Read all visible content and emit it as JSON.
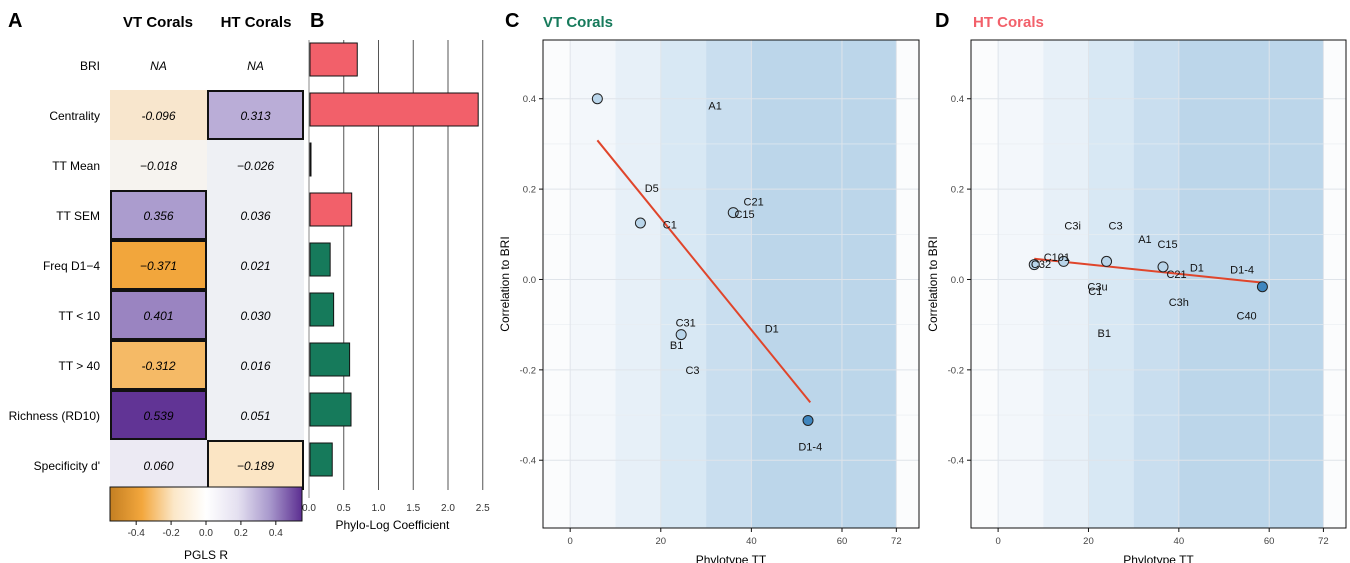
{
  "panel_letters": [
    "A",
    "B",
    "C",
    "D"
  ],
  "colors": {
    "vt": "#167a5b",
    "ht": "#f2606a",
    "fit_line": "#e0452b",
    "point_light": "#b9d5ea",
    "point_dark": "#3f86bf",
    "band_fills": [
      "#f3f7fb",
      "#e7f0f8",
      "#d8e8f4",
      "#c9deef",
      "#bcd6ea"
    ]
  },
  "chart_data": [
    {
      "type": "heatmap",
      "panel": "A",
      "columns": [
        "VT Corals",
        "HT Corals"
      ],
      "rows": [
        "BRI",
        "Centrality",
        "TT Mean",
        "TT SEM",
        "Freq D1−4",
        "TT < 10",
        "TT > 40",
        "Richness (RD10)",
        "Specificity d'"
      ],
      "values": [
        [
          "NA",
          "NA"
        ],
        [
          "-0.096",
          "0.313"
        ],
        [
          "−0.018",
          "−0.026"
        ],
        [
          "0.356",
          "0.036"
        ],
        [
          "−0.371",
          "0.021"
        ],
        [
          "0.401",
          "0.030"
        ],
        [
          "-0.312",
          "0.016"
        ],
        [
          "0.539",
          "0.051"
        ],
        [
          "0.060",
          "−0.189"
        ]
      ],
      "numeric_values": [
        [
          null,
          null
        ],
        [
          -0.096,
          0.313
        ],
        [
          -0.018,
          -0.026
        ],
        [
          0.356,
          0.036
        ],
        [
          -0.371,
          0.021
        ],
        [
          0.401,
          0.03
        ],
        [
          -0.312,
          0.016
        ],
        [
          0.539,
          0.051
        ],
        [
          0.06,
          -0.189
        ]
      ],
      "highlighted_cells": [
        [
          1,
          1
        ],
        [
          3,
          0
        ],
        [
          4,
          0
        ],
        [
          5,
          0
        ],
        [
          6,
          0
        ],
        [
          7,
          0
        ],
        [
          8,
          1
        ]
      ],
      "legend": {
        "title": "PGLS R",
        "range": [
          -0.55,
          0.55
        ],
        "ticks": [
          "-0.4",
          "-0.2",
          "0.0",
          "0.2",
          "0.4"
        ],
        "tick_values": [
          -0.4,
          -0.2,
          0.0,
          0.2,
          0.4
        ],
        "colors": [
          "#c47f22",
          "#f3a73d",
          "#fbe7c8",
          "#ffffff",
          "#e4e0f0",
          "#a898cc",
          "#5c2e91"
        ]
      }
    },
    {
      "type": "bar",
      "panel": "B",
      "orientation": "horizontal",
      "categories": [
        "BRI",
        "Centrality",
        "TT Mean",
        "TT SEM",
        "Freq D1−4",
        "TT < 10",
        "TT > 40",
        "Richness (RD10)",
        "Specificity d'"
      ],
      "values": [
        0.68,
        2.42,
        0.01,
        0.6,
        0.29,
        0.34,
        0.57,
        0.59,
        0.32
      ],
      "bar_group": [
        "HT",
        "HT",
        "HT",
        "HT",
        "VT",
        "VT",
        "VT",
        "VT",
        "VT"
      ],
      "xlabel": "Phylo-Log Coefficient",
      "xlim": [
        0,
        2.55
      ],
      "xticks": [
        0.0,
        0.5,
        1.0,
        1.5,
        2.0,
        2.5
      ],
      "xtick_labels": [
        "0.0",
        "0.5",
        "1.0",
        "1.5",
        "2.0",
        "2.5"
      ],
      "vertical_grid": [
        0.5,
        1.0,
        1.5,
        2.0,
        2.5
      ]
    },
    {
      "type": "scatter",
      "panel": "C",
      "title": "VT Corals",
      "xlabel": "Phylotype TT",
      "ylabel": "Correlation to BRI",
      "xlim": [
        -6,
        77
      ],
      "ylim": [
        -0.55,
        0.53
      ],
      "xticks": [
        0,
        20,
        40,
        60,
        72
      ],
      "yticks": [
        -0.4,
        -0.2,
        0.0,
        0.2,
        0.4
      ],
      "ytick_labels": [
        "-0.4",
        "-0.2",
        "0.0",
        "0.2",
        "0.4"
      ],
      "background_bands": [
        [
          0,
          10
        ],
        [
          10,
          20
        ],
        [
          20,
          30
        ],
        [
          30,
          40
        ],
        [
          40,
          72
        ]
      ],
      "points": [
        {
          "x": 6,
          "y": 0.4,
          "shade": "light"
        },
        {
          "x": 15.5,
          "y": 0.125,
          "shade": "light"
        },
        {
          "x": 36,
          "y": 0.148,
          "shade": "light"
        },
        {
          "x": 24.5,
          "y": -0.122,
          "shade": "light"
        },
        {
          "x": 52.5,
          "y": -0.312,
          "shade": "dark"
        }
      ],
      "labels": [
        {
          "text": "A1",
          "x": 32,
          "y": 0.385
        },
        {
          "text": "D5",
          "x": 18,
          "y": 0.202
        },
        {
          "text": "C21",
          "x": 40.5,
          "y": 0.173
        },
        {
          "text": "C15",
          "x": 38.5,
          "y": 0.145
        },
        {
          "text": "C1",
          "x": 22,
          "y": 0.122
        },
        {
          "text": "C31",
          "x": 25.5,
          "y": -0.095
        },
        {
          "text": "B1",
          "x": 23.5,
          "y": -0.145
        },
        {
          "text": "D1",
          "x": 44.5,
          "y": -0.108
        },
        {
          "text": "C3",
          "x": 27,
          "y": -0.2
        },
        {
          "text": "D1-4",
          "x": 53,
          "y": -0.37
        }
      ],
      "fit_line": {
        "x": [
          6,
          53
        ],
        "y": [
          0.308,
          -0.272
        ]
      }
    },
    {
      "type": "scatter",
      "panel": "D",
      "title": "HT Corals",
      "xlabel": "Phylotype TT",
      "ylabel": "Correlation to BRI",
      "xlim": [
        -6,
        77
      ],
      "ylim": [
        -0.55,
        0.53
      ],
      "xticks": [
        0,
        20,
        40,
        60,
        72
      ],
      "yticks": [
        -0.4,
        -0.2,
        0.0,
        0.2,
        0.4
      ],
      "ytick_labels": [
        "-0.4",
        "-0.2",
        "0.0",
        "0.2",
        "0.4"
      ],
      "background_bands": [
        [
          0,
          10
        ],
        [
          10,
          20
        ],
        [
          20,
          30
        ],
        [
          30,
          40
        ],
        [
          40,
          72
        ]
      ],
      "points": [
        {
          "x": 8,
          "y": 0.033,
          "shade": "light"
        },
        {
          "x": 14.5,
          "y": 0.04,
          "shade": "light"
        },
        {
          "x": 24,
          "y": 0.04,
          "shade": "light"
        },
        {
          "x": 36.5,
          "y": 0.028,
          "shade": "light"
        },
        {
          "x": 58.5,
          "y": -0.016,
          "shade": "dark"
        }
      ],
      "labels": [
        {
          "text": "C3i",
          "x": 16.5,
          "y": 0.12
        },
        {
          "text": "C3",
          "x": 26,
          "y": 0.12
        },
        {
          "text": "A1",
          "x": 32.5,
          "y": 0.09
        },
        {
          "text": "C15",
          "x": 37.5,
          "y": 0.078
        },
        {
          "text": "C101",
          "x": 13,
          "y": 0.05
        },
        {
          "text": "C32",
          "x": 9.5,
          "y": 0.034
        },
        {
          "text": "D1",
          "x": 44,
          "y": 0.027
        },
        {
          "text": "D1-4",
          "x": 54,
          "y": 0.022
        },
        {
          "text": "C21",
          "x": 39.5,
          "y": 0.012
        },
        {
          "text": "C3u",
          "x": 22,
          "y": -0.015
        },
        {
          "text": "C1",
          "x": 21.5,
          "y": -0.026
        },
        {
          "text": "C3h",
          "x": 40,
          "y": -0.05
        },
        {
          "text": "C40",
          "x": 55,
          "y": -0.08
        },
        {
          "text": "B1",
          "x": 23.5,
          "y": -0.118
        }
      ],
      "fit_line": {
        "x": [
          8,
          58.5
        ],
        "y": [
          0.046,
          -0.007
        ]
      }
    }
  ]
}
